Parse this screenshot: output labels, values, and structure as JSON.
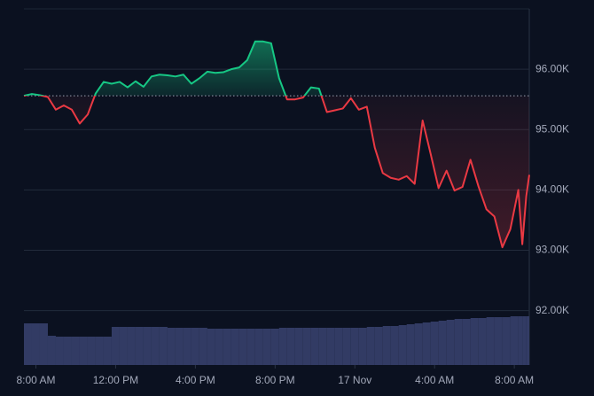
{
  "chart_data": {
    "type": "line",
    "x": [
      -0.6,
      -0.2,
      0.2,
      0.6,
      1.0,
      1.4,
      1.8,
      2.2,
      2.6,
      3.0,
      3.4,
      3.8,
      4.2,
      4.6,
      5.0,
      5.4,
      5.8,
      6.2,
      6.6,
      7.0,
      7.4,
      7.8,
      8.2,
      8.6,
      9.0,
      9.4,
      9.8,
      10.2,
      10.6,
      11.0,
      11.4,
      11.8,
      12.2,
      12.6,
      13.0,
      13.4,
      13.8,
      14.2,
      14.6,
      15.0,
      15.4,
      15.8,
      16.2,
      16.6,
      17.0,
      17.4,
      17.8,
      18.2,
      18.6,
      19.0,
      19.4,
      19.8,
      20.2,
      20.6,
      21.0,
      21.4,
      21.8,
      22.2,
      22.6,
      23.0,
      23.4,
      23.8,
      24.2,
      24.4,
      24.6,
      24.75
    ],
    "series": [
      {
        "values": [
          95560,
          95590,
          95570,
          95540,
          95330,
          95400,
          95330,
          95100,
          95250,
          95600,
          95790,
          95760,
          95790,
          95700,
          95800,
          95710,
          95880,
          95910,
          95900,
          95880,
          95910,
          95760,
          95850,
          95960,
          95940,
          95950,
          96000,
          96030,
          96150,
          96460,
          96460,
          96430,
          95850,
          95500,
          95500,
          95530,
          95700,
          95680,
          95290,
          95320,
          95350,
          95520,
          95330,
          95380,
          94700,
          94280,
          94200,
          94170,
          94230,
          94100,
          95150,
          94600,
          94030,
          94320,
          93990,
          94050,
          94500,
          94060,
          93680,
          93560,
          93050,
          93350,
          94000,
          93100,
          93900,
          94250
        ],
        "up_color": "#16c784",
        "down_color": "#ea3943"
      }
    ],
    "volume": [
      47,
      47,
      47,
      33,
      32,
      32,
      32,
      32,
      32,
      32,
      32,
      43,
      43,
      43,
      43,
      43,
      43,
      43,
      42,
      42,
      42,
      42,
      42,
      41,
      41,
      41,
      41,
      41,
      41,
      41,
      41,
      41,
      42,
      42,
      42,
      42,
      42,
      42,
      42,
      42,
      42,
      42,
      42,
      43,
      43,
      44,
      44,
      45,
      46,
      47,
      48,
      49,
      50,
      51,
      52,
      52,
      53,
      53,
      54,
      54,
      54,
      55,
      55,
      55,
      55,
      55
    ],
    "volume_lim": [
      0,
      100
    ],
    "volume_color": "#36406b",
    "baseline": 95560,
    "xlim": [
      -0.6,
      24.75
    ],
    "xticks": [
      {
        "value": 0,
        "label": "8:00 AM"
      },
      {
        "value": 4,
        "label": "12:00 PM"
      },
      {
        "value": 8,
        "label": "4:00 PM"
      },
      {
        "value": 12,
        "label": "8:00 PM"
      },
      {
        "value": 16,
        "label": "17 Nov"
      },
      {
        "value": 20,
        "label": "4:00 AM"
      },
      {
        "value": 24,
        "label": "8:00 AM"
      }
    ],
    "ylim": [
      91100,
      97000
    ],
    "yticks": [
      {
        "value": 92000,
        "label": "92.00K"
      },
      {
        "value": 93000,
        "label": "93.00K"
      },
      {
        "value": 94000,
        "label": "94.00K"
      },
      {
        "value": 95000,
        "label": "95.00K"
      },
      {
        "value": 96000,
        "label": "96.00K"
      }
    ],
    "grid": true
  }
}
